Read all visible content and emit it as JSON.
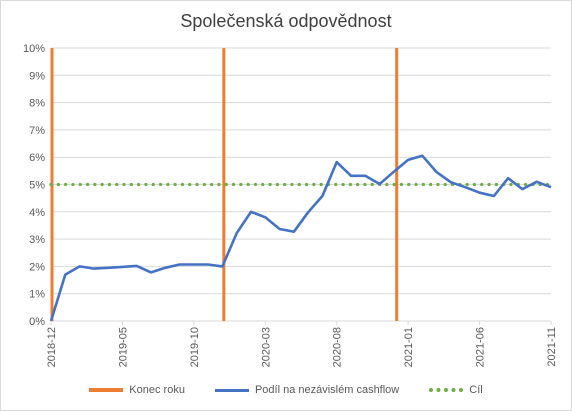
{
  "chart_data": {
    "type": "line",
    "title": "Společenská odpovědnost",
    "xlabel": "",
    "ylabel": "",
    "ylim": [
      0,
      10
    ],
    "y_tick_labels": [
      "0%",
      "1%",
      "2%",
      "3%",
      "4%",
      "5%",
      "6%",
      "7%",
      "8%",
      "9%",
      "10%"
    ],
    "x_tick_labels": [
      "2018-12",
      "2019-05",
      "2019-10",
      "2020-03",
      "2020-08",
      "2021-01",
      "2021-06",
      "2021-11"
    ],
    "x_tick_months": [
      0,
      5,
      10,
      15,
      20,
      25,
      30,
      35
    ],
    "grid": true,
    "legend_position": "bottom",
    "series": [
      {
        "name": "Konec roku",
        "type": "vertical-markers",
        "color": "#ED7D31",
        "x": [
          0,
          12.1,
          24.2
        ]
      },
      {
        "name": "Podíl na nezávislém cashflow",
        "type": "line",
        "color": "#4472C4",
        "x": [
          0,
          1,
          2,
          3,
          4,
          5,
          6,
          7,
          8,
          9,
          10,
          11,
          12,
          13,
          14,
          15,
          16,
          17,
          18,
          19,
          20,
          21,
          22,
          23,
          24,
          25,
          26,
          27,
          28,
          29,
          30,
          31,
          32,
          33,
          34,
          35
        ],
        "values": [
          0,
          1.7,
          2.0,
          1.92,
          1.95,
          1.98,
          2.02,
          1.78,
          1.95,
          2.07,
          2.07,
          2.07,
          2.0,
          3.22,
          4.0,
          3.8,
          3.37,
          3.27,
          3.98,
          4.58,
          5.82,
          5.32,
          5.32,
          5.02,
          5.47,
          5.9,
          6.05,
          5.45,
          5.08,
          4.9,
          4.7,
          4.58,
          5.23,
          4.83,
          5.1,
          4.9
        ]
      },
      {
        "name": "Cíl",
        "type": "dotted-line",
        "color": "#70AD47",
        "x": [
          0,
          35
        ],
        "values": [
          5,
          5
        ]
      }
    ]
  }
}
